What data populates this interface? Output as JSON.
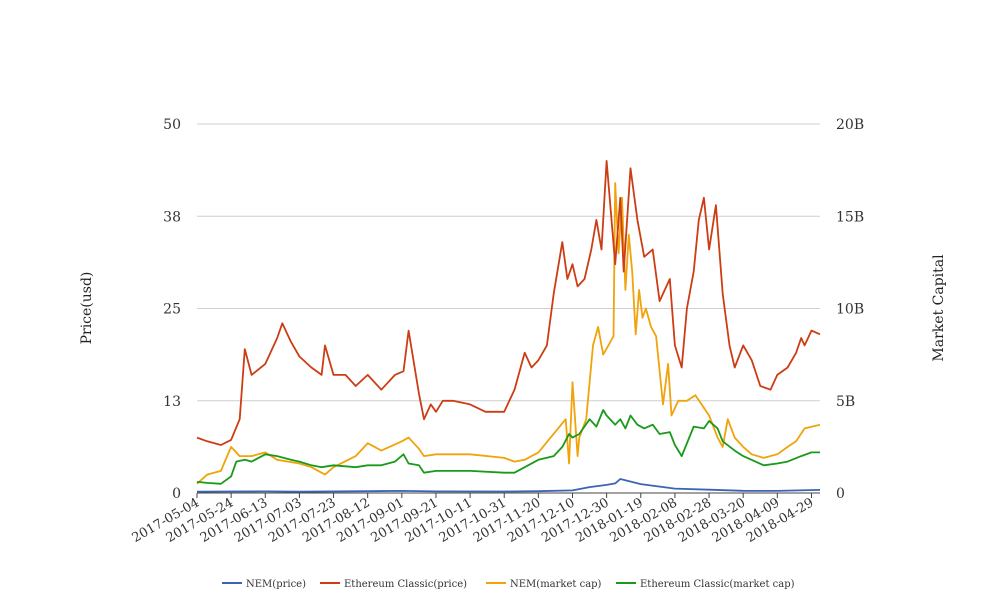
{
  "chart_data": {
    "type": "line",
    "ylabel_left": "Price(usd)",
    "ylabel_right": "Market Capital",
    "y_left_ticks": [
      "0",
      "13",
      "25",
      "38",
      "50"
    ],
    "y_left_range": [
      0,
      50
    ],
    "y_right_ticks": [
      "0",
      "5B",
      "10B",
      "15B",
      "20B"
    ],
    "y_right_range": [
      0,
      20000000000
    ],
    "x_ticks": [
      "2017-05-04",
      "2017-05-24",
      "2017-06-13",
      "2017-07-03",
      "2017-07-23",
      "2017-08-12",
      "2017-09-01",
      "2017-09-21",
      "2017-10-11",
      "2017-10-31",
      "2017-11-20",
      "2017-12-10",
      "2017-12-30",
      "2018-01-19",
      "2018-02-08",
      "2018-02-28",
      "2018-03-20",
      "2018-04-09",
      "2018-04-29"
    ],
    "x_range": [
      "2017-05-04",
      "2018-05-04"
    ],
    "grid": true,
    "legend_position": "bottom",
    "colors": {
      "nem_price": "#3c64b4",
      "etc_price": "#cc3d14",
      "nem_cap": "#f0a30a",
      "etc_cap": "#1a9a1a"
    },
    "series": [
      {
        "name": "NEM(price)",
        "key": "nem_price",
        "axis": "left",
        "x": [
          "2017-05-04",
          "2017-05-20",
          "2017-06-13",
          "2017-07-03",
          "2017-08-12",
          "2017-09-01",
          "2017-09-21",
          "2017-10-31",
          "2017-11-20",
          "2017-12-10",
          "2017-12-20",
          "2017-12-30",
          "2018-01-04",
          "2018-01-07",
          "2018-01-19",
          "2018-02-08",
          "2018-02-28",
          "2018-03-20",
          "2018-04-09",
          "2018-05-04"
        ],
        "values": [
          0.17,
          0.2,
          0.22,
          0.18,
          0.25,
          0.28,
          0.22,
          0.2,
          0.25,
          0.35,
          0.8,
          1.1,
          1.3,
          1.9,
          1.2,
          0.6,
          0.45,
          0.3,
          0.28,
          0.42
        ]
      },
      {
        "name": "Ethereum Classic(price)",
        "key": "etc_price",
        "axis": "left",
        "x": [
          "2017-05-04",
          "2017-05-10",
          "2017-05-18",
          "2017-05-24",
          "2017-05-29",
          "2017-06-01",
          "2017-06-05",
          "2017-06-13",
          "2017-06-20",
          "2017-06-23",
          "2017-06-28",
          "2017-07-03",
          "2017-07-10",
          "2017-07-16",
          "2017-07-18",
          "2017-07-23",
          "2017-07-30",
          "2017-08-05",
          "2017-08-12",
          "2017-08-20",
          "2017-08-28",
          "2017-09-02",
          "2017-09-05",
          "2017-09-11",
          "2017-09-14",
          "2017-09-18",
          "2017-09-21",
          "2017-09-25",
          "2017-10-01",
          "2017-10-11",
          "2017-10-20",
          "2017-10-31",
          "2017-11-06",
          "2017-11-12",
          "2017-11-16",
          "2017-11-20",
          "2017-11-25",
          "2017-11-29",
          "2017-12-04",
          "2017-12-07",
          "2017-12-10",
          "2017-12-13",
          "2017-12-17",
          "2017-12-21",
          "2017-12-24",
          "2017-12-27",
          "2017-12-30",
          "2018-01-04",
          "2018-01-07",
          "2018-01-09",
          "2018-01-13",
          "2018-01-17",
          "2018-01-21",
          "2018-01-26",
          "2018-01-30",
          "2018-02-05",
          "2018-02-08",
          "2018-02-12",
          "2018-02-15",
          "2018-02-19",
          "2018-02-22",
          "2018-02-25",
          "2018-02-28",
          "2018-03-04",
          "2018-03-08",
          "2018-03-12",
          "2018-03-15",
          "2018-03-20",
          "2018-03-25",
          "2018-03-30",
          "2018-04-05",
          "2018-04-09",
          "2018-04-15",
          "2018-04-20",
          "2018-04-23",
          "2018-04-25",
          "2018-04-29",
          "2018-05-04"
        ],
        "values": [
          7.5,
          7,
          6.5,
          7.2,
          10,
          19.5,
          16,
          17.5,
          21,
          23,
          20.5,
          18.5,
          17,
          16,
          20,
          16,
          16,
          14.5,
          16,
          14,
          16,
          16.5,
          22,
          13.5,
          10,
          12,
          11,
          12.5,
          12.5,
          12,
          11,
          11,
          14,
          19,
          17,
          18,
          20,
          27,
          34,
          29,
          31,
          28,
          29,
          33,
          37,
          33,
          45,
          31,
          40,
          30,
          44,
          37,
          32,
          33,
          26,
          29,
          20,
          17,
          25,
          30,
          37,
          40,
          33,
          39,
          27,
          20,
          17,
          20,
          18,
          14.5,
          14,
          16,
          17,
          19,
          21,
          20,
          22,
          21.5
        ]
      },
      {
        "name": "NEM(market cap)",
        "key": "nem_cap",
        "axis": "right",
        "x": [
          "2017-05-04",
          "2017-05-10",
          "2017-05-18",
          "2017-05-24",
          "2017-05-29",
          "2017-06-05",
          "2017-06-13",
          "2017-06-20",
          "2017-07-03",
          "2017-07-10",
          "2017-07-18",
          "2017-07-23",
          "2017-08-05",
          "2017-08-12",
          "2017-08-20",
          "2017-09-01",
          "2017-09-05",
          "2017-09-11",
          "2017-09-14",
          "2017-09-21",
          "2017-10-11",
          "2017-10-31",
          "2017-11-06",
          "2017-11-12",
          "2017-11-20",
          "2017-12-06",
          "2017-12-08",
          "2017-12-10",
          "2017-12-13",
          "2017-12-14",
          "2017-12-18",
          "2017-12-22",
          "2017-12-25",
          "2017-12-28",
          "2017-12-31",
          "2018-01-03",
          "2018-01-04",
          "2018-01-06",
          "2018-01-08",
          "2018-01-10",
          "2018-01-12",
          "2018-01-14",
          "2018-01-16",
          "2018-01-18",
          "2018-01-20",
          "2018-01-22",
          "2018-01-25",
          "2018-01-28",
          "2018-02-01",
          "2018-02-04",
          "2018-02-06",
          "2018-02-10",
          "2018-02-15",
          "2018-02-20",
          "2018-02-28",
          "2018-03-05",
          "2018-03-08",
          "2018-03-11",
          "2018-03-15",
          "2018-03-20",
          "2018-03-25",
          "2018-04-01",
          "2018-04-09",
          "2018-04-15",
          "2018-04-20",
          "2018-04-25",
          "2018-05-04"
        ],
        "values": [
          0.5,
          1,
          1.2,
          2.5,
          2,
          2,
          2.2,
          1.8,
          1.6,
          1.4,
          1,
          1.4,
          2,
          2.7,
          2.3,
          2.8,
          3,
          2.4,
          2,
          2.1,
          2.1,
          1.9,
          1.7,
          1.8,
          2.2,
          4,
          1.6,
          6,
          2,
          3,
          4,
          8,
          9,
          7.5,
          8,
          8.5,
          16.8,
          13,
          16,
          11,
          14,
          12,
          8.6,
          11,
          9.5,
          10,
          9,
          8.5,
          4.8,
          7,
          4.2,
          5,
          5,
          5.3,
          4.2,
          3,
          2.5,
          4,
          3,
          2.5,
          2.1,
          1.9,
          2.1,
          2.5,
          2.8,
          3.5,
          3.7
        ]
      },
      {
        "name": "Ethereum Classic(market cap)",
        "key": "etc_cap",
        "axis": "right",
        "x": [
          "2017-05-04",
          "2017-05-10",
          "2017-05-18",
          "2017-05-24",
          "2017-05-27",
          "2017-06-01",
          "2017-06-05",
          "2017-06-13",
          "2017-06-20",
          "2017-06-28",
          "2017-07-03",
          "2017-07-10",
          "2017-07-16",
          "2017-07-23",
          "2017-08-05",
          "2017-08-12",
          "2017-08-20",
          "2017-08-28",
          "2017-09-02",
          "2017-09-05",
          "2017-09-11",
          "2017-09-14",
          "2017-09-21",
          "2017-10-11",
          "2017-10-31",
          "2017-11-06",
          "2017-11-12",
          "2017-11-20",
          "2017-11-29",
          "2017-12-04",
          "2017-12-08",
          "2017-12-10",
          "2017-12-14",
          "2017-12-20",
          "2017-12-24",
          "2017-12-28",
          "2017-12-30",
          "2018-01-04",
          "2018-01-07",
          "2018-01-10",
          "2018-01-13",
          "2018-01-17",
          "2018-01-21",
          "2018-01-26",
          "2018-01-30",
          "2018-02-05",
          "2018-02-08",
          "2018-02-12",
          "2018-02-19",
          "2018-02-25",
          "2018-02-28",
          "2018-03-05",
          "2018-03-08",
          "2018-03-15",
          "2018-03-20",
          "2018-04-01",
          "2018-04-09",
          "2018-04-15",
          "2018-04-23",
          "2018-04-29",
          "2018-05-04"
        ],
        "values": [
          0.6,
          0.55,
          0.5,
          0.9,
          1.7,
          1.8,
          1.7,
          2.1,
          2.0,
          1.8,
          1.7,
          1.5,
          1.4,
          1.5,
          1.4,
          1.5,
          1.5,
          1.7,
          2.1,
          1.6,
          1.5,
          1.1,
          1.2,
          1.2,
          1.1,
          1.1,
          1.4,
          1.8,
          2.0,
          2.5,
          3.2,
          3.0,
          3.2,
          4.0,
          3.6,
          4.5,
          4.2,
          3.7,
          4.0,
          3.5,
          4.2,
          3.7,
          3.5,
          3.7,
          3.2,
          3.3,
          2.6,
          2.0,
          3.6,
          3.5,
          3.9,
          3.5,
          2.8,
          2.3,
          2.0,
          1.5,
          1.6,
          1.7,
          2.0,
          2.2,
          2.2
        ]
      }
    ]
  }
}
